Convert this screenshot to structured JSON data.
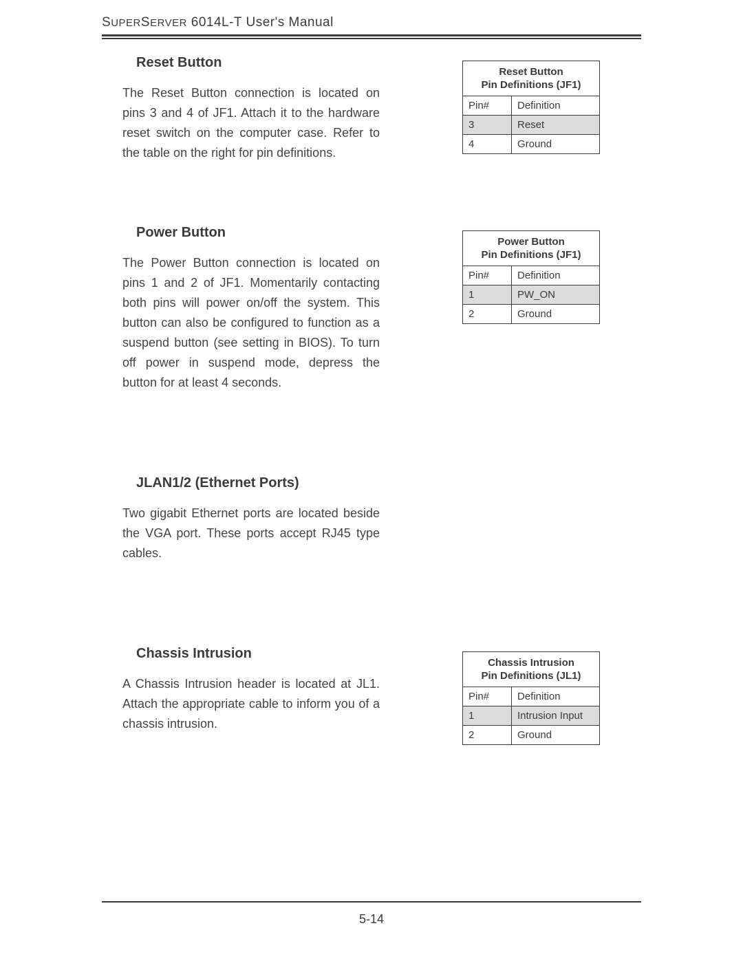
{
  "header": {
    "prefix_caps": "S",
    "prefix_small": "UPER",
    "mid_caps": "S",
    "mid_small": "ERVER",
    "rest": " 6014L-T User's Manual"
  },
  "sections": [
    {
      "heading": "Reset Button",
      "body": "The Reset Button connection is located on pins 3 and 4 of JF1.  Attach it to the hardware reset switch on the computer case.  Refer to the table on the right for pin definitions.",
      "table": {
        "title_line1": "Reset Button",
        "title_line2": "Pin Definitions (JF1)",
        "col1": "Pin#",
        "col2": "Definition",
        "rows": [
          {
            "pin": "3",
            "def": "Reset",
            "shaded": true
          },
          {
            "pin": "4",
            "def": "Ground",
            "shaded": false
          }
        ]
      }
    },
    {
      "heading": "Power Button",
      "body": "The Power Button connection is located on pins 1 and 2 of JF1.  Momentarily contacting both pins will power on/off the system.  This button can also be configured to function as a suspend button (see setting in BIOS).  To turn off  power in suspend mode, depress the button for at least 4 seconds.",
      "table": {
        "title_line1": "Power Button",
        "title_line2": "Pin Definitions (JF1)",
        "col1": "Pin#",
        "col2": "Definition",
        "rows": [
          {
            "pin": "1",
            "def": "PW_ON",
            "shaded": true
          },
          {
            "pin": "2",
            "def": "Ground",
            "shaded": false
          }
        ]
      }
    },
    {
      "heading": "JLAN1/2 (Ethernet Ports)",
      "body": "Two gigabit Ethernet ports are located beside the VGA port.  These ports accept RJ45 type cables.",
      "table": null
    },
    {
      "heading": "Chassis Intrusion",
      "body": "A Chassis Intrusion header is located at JL1.  Attach the appropriate cable to inform you of a chassis intrusion.",
      "table": {
        "title_line1": "Chassis Intrusion",
        "title_line2": "Pin Definitions (JL1)",
        "col1": "Pin#",
        "col2": "Definition",
        "rows": [
          {
            "pin": "1",
            "def": "Intrusion Input",
            "shaded": true
          },
          {
            "pin": "2",
            "def": "Ground",
            "shaded": false
          }
        ]
      }
    }
  ],
  "page_number": "5-14",
  "colors": {
    "text": "#3b3b3b",
    "shaded_row": "#dcdcdc",
    "background": "#ffffff"
  }
}
